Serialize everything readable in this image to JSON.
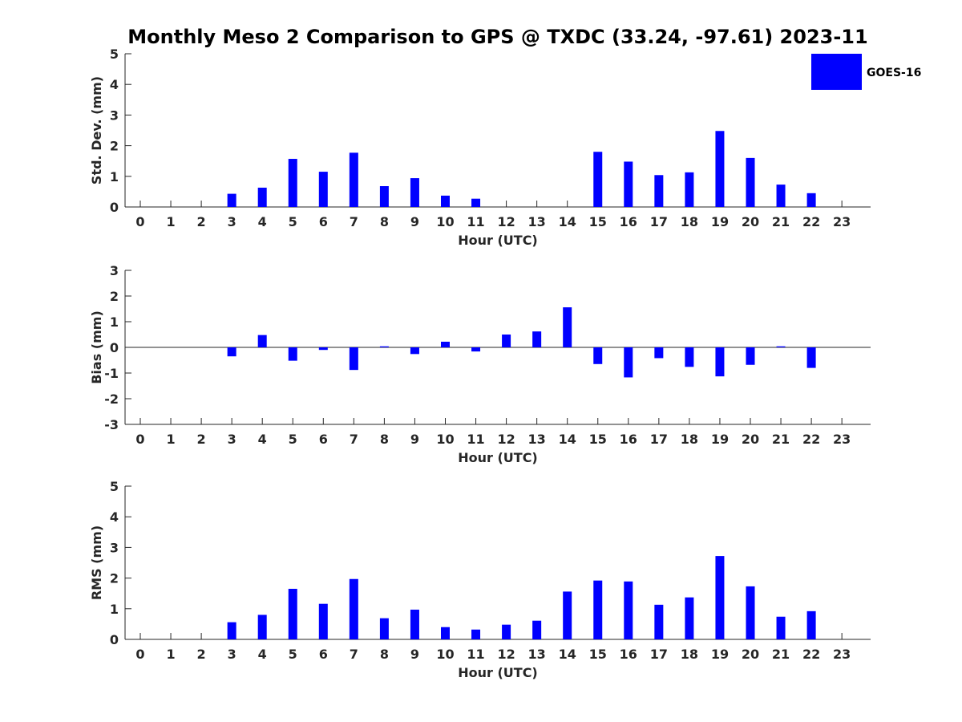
{
  "title": "Monthly Meso 2 Comparison to GPS @ TXDC (33.24, -97.61) 2023-11",
  "legend": {
    "label": "GOES-16",
    "color": "#0000ff"
  },
  "chart_data": [
    {
      "type": "bar",
      "name": "std-dev",
      "title": "Monthly Meso 2 Comparison to GPS @ TXDC (33.24, -97.61) 2023-11",
      "xlabel": "Hour (UTC)",
      "ylabel": "Std. Dev. (mm)",
      "ylim": [
        0,
        5
      ],
      "yticks": [
        0,
        1,
        2,
        3,
        4,
        5
      ],
      "categories": [
        "0",
        "1",
        "2",
        "3",
        "4",
        "5",
        "6",
        "7",
        "8",
        "9",
        "10",
        "11",
        "12",
        "13",
        "14",
        "15",
        "16",
        "17",
        "18",
        "19",
        "20",
        "21",
        "22",
        "23"
      ],
      "series": [
        {
          "name": "GOES-16",
          "color": "#0000ff",
          "values": [
            null,
            null,
            null,
            0.43,
            0.63,
            1.57,
            1.15,
            1.77,
            0.68,
            0.94,
            0.37,
            0.27,
            null,
            null,
            null,
            1.8,
            1.48,
            1.04,
            1.13,
            2.48,
            1.6,
            0.73,
            0.45,
            null
          ]
        }
      ]
    },
    {
      "type": "bar",
      "name": "bias",
      "xlabel": "Hour (UTC)",
      "ylabel": "Bias (mm)",
      "ylim": [
        -3,
        3
      ],
      "yticks": [
        -3,
        -2,
        -1,
        0,
        1,
        2,
        3
      ],
      "zero_line": true,
      "categories": [
        "0",
        "1",
        "2",
        "3",
        "4",
        "5",
        "6",
        "7",
        "8",
        "9",
        "10",
        "11",
        "12",
        "13",
        "14",
        "15",
        "16",
        "17",
        "18",
        "19",
        "20",
        "21",
        "22",
        "23"
      ],
      "series": [
        {
          "name": "GOES-16",
          "color": "#0000ff",
          "values": [
            null,
            null,
            null,
            -0.35,
            0.48,
            -0.52,
            -0.1,
            -0.88,
            0.04,
            -0.26,
            0.22,
            -0.16,
            0.5,
            0.62,
            1.56,
            -0.65,
            -1.17,
            -0.42,
            -0.76,
            -1.13,
            -0.68,
            0.04,
            -0.8,
            null
          ]
        }
      ]
    },
    {
      "type": "bar",
      "name": "rms",
      "xlabel": "Hour (UTC)",
      "ylabel": "RMS (mm)",
      "ylim": [
        0,
        5
      ],
      "yticks": [
        0,
        1,
        2,
        3,
        4,
        5
      ],
      "categories": [
        "0",
        "1",
        "2",
        "3",
        "4",
        "5",
        "6",
        "7",
        "8",
        "9",
        "10",
        "11",
        "12",
        "13",
        "14",
        "15",
        "16",
        "17",
        "18",
        "19",
        "20",
        "21",
        "22",
        "23"
      ],
      "series": [
        {
          "name": "GOES-16",
          "color": "#0000ff",
          "values": [
            null,
            null,
            null,
            0.56,
            0.8,
            1.65,
            1.16,
            1.97,
            0.69,
            0.97,
            0.4,
            0.32,
            0.48,
            0.61,
            1.56,
            1.92,
            1.89,
            1.13,
            1.37,
            2.72,
            1.73,
            0.74,
            0.92,
            null
          ]
        }
      ]
    }
  ]
}
